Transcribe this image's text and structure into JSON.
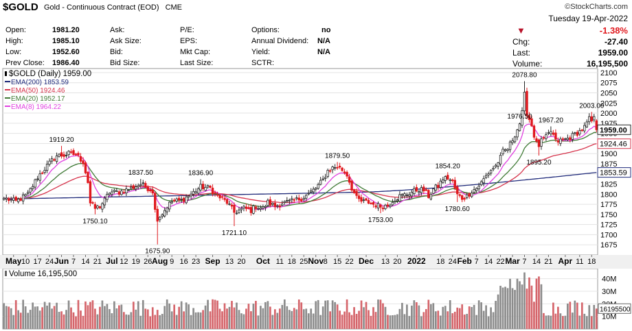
{
  "header": {
    "symbol": "$GOLD",
    "description": "Gold - Continuous Contract (EOD)",
    "exchange": "CME",
    "brand": "©StockCharts.com"
  },
  "quote": {
    "open_label": "Open:",
    "open_value": "1981.20",
    "high_label": "High:",
    "high_value": "1985.10",
    "low_label": "Low:",
    "low_value": "1952.60",
    "prevclose_label": "Prev Close:",
    "prevclose_value": "1986.40",
    "ask_label": "Ask:",
    "asksize_label": "Ask Size:",
    "bid_label": "Bid:",
    "bidsize_label": "Bid Size:",
    "pe_label": "P/E:",
    "eps_label": "EPS:",
    "mktcap_label": "Mkt Cap:",
    "lastsize_label": "Last Size:",
    "options_label": "Options:",
    "options_value": "no",
    "dividend_label": "Annual Dividend:",
    "dividend_value": "N/A",
    "yield_label": "Yield:",
    "yield_value": "N/A",
    "sctr_label": "SCTR:",
    "date": "Tuesday  19-Apr-2022",
    "pct_change": "-1.38%",
    "chg_label": "Chg:",
    "chg_value": "-27.40",
    "last_label": "Last:",
    "last_value": "1959.00",
    "volume_label": "Volume:",
    "volume_value": "16,195,500"
  },
  "colors": {
    "up": "#222222",
    "down": "#e0191e",
    "ema200": "#1f2a7a",
    "ema50": "#d6334b",
    "ema20": "#3f7a35",
    "ema8": "#e040e0",
    "vol_up": "#8c8c8c",
    "vol_down": "#d5656b"
  },
  "chart_data": {
    "type": "candlestick",
    "legend": [
      {
        "label": "$GOLD (Daily) 1959.00",
        "key": "price"
      },
      {
        "label": "EMA(200) 1853.59",
        "key": "ema200"
      },
      {
        "label": "EMA(50) 1924.46",
        "key": "ema50"
      },
      {
        "label": "EMA(20) 1952.17",
        "key": "ema20"
      },
      {
        "label": "EMA(8) 1964.22",
        "key": "ema8"
      }
    ],
    "ylim": [
      1650,
      2110
    ],
    "y_ticks": [
      1675,
      1700,
      1725,
      1750,
      1775,
      1800,
      1825,
      1850,
      1875,
      1900,
      1925,
      1950,
      1975,
      2000,
      2025,
      2050,
      2075,
      2100
    ],
    "x_labels": [
      {
        "label": "May",
        "bar": 4
      },
      {
        "label": "10",
        "bar": 9
      },
      {
        "label": "17",
        "bar": 14
      },
      {
        "label": "24",
        "bar": 19
      },
      {
        "label": "Jun",
        "bar": 24
      },
      {
        "label": "7",
        "bar": 29
      },
      {
        "label": "14",
        "bar": 34
      },
      {
        "label": "21",
        "bar": 39
      },
      {
        "label": "Jul",
        "bar": 45
      },
      {
        "label": "12",
        "bar": 50
      },
      {
        "label": "19",
        "bar": 55
      },
      {
        "label": "26",
        "bar": 60
      },
      {
        "label": "Aug",
        "bar": 65
      },
      {
        "label": "9",
        "bar": 70
      },
      {
        "label": "16",
        "bar": 75
      },
      {
        "label": "23",
        "bar": 80
      },
      {
        "label": "Sep",
        "bar": 87
      },
      {
        "label": "13",
        "bar": 94
      },
      {
        "label": "20",
        "bar": 99
      },
      {
        "label": "Oct",
        "bar": 108
      },
      {
        "label": "11",
        "bar": 115
      },
      {
        "label": "18",
        "bar": 120
      },
      {
        "label": "25",
        "bar": 125
      },
      {
        "label": "Nov",
        "bar": 130
      },
      {
        "label": "8",
        "bar": 134
      },
      {
        "label": "15",
        "bar": 139
      },
      {
        "label": "22",
        "bar": 144
      },
      {
        "label": "Dec",
        "bar": 151
      },
      {
        "label": "13",
        "bar": 159
      },
      {
        "label": "20",
        "bar": 164
      },
      {
        "label": "2022",
        "bar": 172
      },
      {
        "label": "18",
        "bar": 182
      },
      {
        "label": "24",
        "bar": 187
      },
      {
        "label": "Feb",
        "bar": 192
      },
      {
        "label": "7",
        "bar": 197
      },
      {
        "label": "14",
        "bar": 202
      },
      {
        "label": "22",
        "bar": 207
      },
      {
        "label": "Mar",
        "bar": 212
      },
      {
        "label": "7",
        "bar": 217
      },
      {
        "label": "14",
        "bar": 222
      },
      {
        "label": "21",
        "bar": 227
      },
      {
        "label": "Apr",
        "bar": 234
      },
      {
        "label": "11",
        "bar": 240
      },
      {
        "label": "18",
        "bar": 245
      }
    ],
    "anchors": [
      {
        "i": 0,
        "p": 1790
      },
      {
        "i": 5,
        "p": 1782
      },
      {
        "i": 10,
        "p": 1800
      },
      {
        "i": 14,
        "p": 1842
      },
      {
        "i": 18,
        "p": 1870
      },
      {
        "i": 22,
        "p": 1895
      },
      {
        "i": 25,
        "p": 1896
      },
      {
        "i": 27,
        "p": 1900
      },
      {
        "i": 30,
        "p": 1898
      },
      {
        "i": 33,
        "p": 1880
      },
      {
        "i": 35,
        "p": 1830
      },
      {
        "i": 36,
        "p": 1778
      },
      {
        "i": 38,
        "p": 1765
      },
      {
        "i": 40,
        "p": 1770
      },
      {
        "i": 42,
        "p": 1785
      },
      {
        "i": 44,
        "p": 1805
      },
      {
        "i": 48,
        "p": 1805
      },
      {
        "i": 52,
        "p": 1812
      },
      {
        "i": 57,
        "p": 1825
      },
      {
        "i": 60,
        "p": 1815
      },
      {
        "i": 62,
        "p": 1808
      },
      {
        "i": 63,
        "p": 1760
      },
      {
        "i": 64,
        "p": 1740
      },
      {
        "i": 66,
        "p": 1752
      },
      {
        "i": 68,
        "p": 1770
      },
      {
        "i": 70,
        "p": 1782
      },
      {
        "i": 74,
        "p": 1785
      },
      {
        "i": 78,
        "p": 1800
      },
      {
        "i": 82,
        "p": 1818
      },
      {
        "i": 86,
        "p": 1815
      },
      {
        "i": 88,
        "p": 1800
      },
      {
        "i": 90,
        "p": 1792
      },
      {
        "i": 93,
        "p": 1780
      },
      {
        "i": 96,
        "p": 1755
      },
      {
        "i": 98,
        "p": 1760
      },
      {
        "i": 100,
        "p": 1765
      },
      {
        "i": 103,
        "p": 1760
      },
      {
        "i": 105,
        "p": 1770
      },
      {
        "i": 108,
        "p": 1765
      },
      {
        "i": 110,
        "p": 1780
      },
      {
        "i": 113,
        "p": 1770
      },
      {
        "i": 116,
        "p": 1778
      },
      {
        "i": 120,
        "p": 1782
      },
      {
        "i": 124,
        "p": 1790
      },
      {
        "i": 127,
        "p": 1800
      },
      {
        "i": 130,
        "p": 1815
      },
      {
        "i": 133,
        "p": 1835
      },
      {
        "i": 135,
        "p": 1858
      },
      {
        "i": 137,
        "p": 1865
      },
      {
        "i": 139,
        "p": 1868
      },
      {
        "i": 141,
        "p": 1860
      },
      {
        "i": 143,
        "p": 1848
      },
      {
        "i": 145,
        "p": 1815
      },
      {
        "i": 147,
        "p": 1790
      },
      {
        "i": 149,
        "p": 1782
      },
      {
        "i": 152,
        "p": 1780
      },
      {
        "i": 154,
        "p": 1775
      },
      {
        "i": 157,
        "p": 1770
      },
      {
        "i": 160,
        "p": 1772
      },
      {
        "i": 162,
        "p": 1785
      },
      {
        "i": 165,
        "p": 1795
      },
      {
        "i": 168,
        "p": 1800
      },
      {
        "i": 171,
        "p": 1808
      },
      {
        "i": 173,
        "p": 1812
      },
      {
        "i": 175,
        "p": 1810
      },
      {
        "i": 177,
        "p": 1795
      },
      {
        "i": 179,
        "p": 1812
      },
      {
        "i": 181,
        "p": 1820
      },
      {
        "i": 183,
        "p": 1838
      },
      {
        "i": 185,
        "p": 1840
      },
      {
        "i": 187,
        "p": 1830
      },
      {
        "i": 189,
        "p": 1798
      },
      {
        "i": 191,
        "p": 1790
      },
      {
        "i": 193,
        "p": 1795
      },
      {
        "i": 195,
        "p": 1808
      },
      {
        "i": 197,
        "p": 1815
      },
      {
        "i": 199,
        "p": 1828
      },
      {
        "i": 201,
        "p": 1845
      },
      {
        "i": 203,
        "p": 1860
      },
      {
        "i": 205,
        "p": 1870
      },
      {
        "i": 207,
        "p": 1890
      },
      {
        "i": 208,
        "p": 1905
      },
      {
        "i": 210,
        "p": 1912
      },
      {
        "i": 212,
        "p": 1935
      },
      {
        "i": 214,
        "p": 1960
      },
      {
        "i": 215,
        "p": 1975
      },
      {
        "i": 216,
        "p": 2000
      },
      {
        "i": 217,
        "p": 2045
      },
      {
        "i": 218,
        "p": 2000
      },
      {
        "i": 219,
        "p": 1985
      },
      {
        "i": 220,
        "p": 1970
      },
      {
        "i": 221,
        "p": 1945
      },
      {
        "i": 222,
        "p": 1925
      },
      {
        "i": 223,
        "p": 1920
      },
      {
        "i": 224,
        "p": 1930
      },
      {
        "i": 226,
        "p": 1940
      },
      {
        "i": 228,
        "p": 1955
      },
      {
        "i": 229,
        "p": 1945
      },
      {
        "i": 230,
        "p": 1930
      },
      {
        "i": 232,
        "p": 1932
      },
      {
        "i": 234,
        "p": 1935
      },
      {
        "i": 236,
        "p": 1940
      },
      {
        "i": 238,
        "p": 1948
      },
      {
        "i": 240,
        "p": 1955
      },
      {
        "i": 242,
        "p": 1965
      },
      {
        "i": 243,
        "p": 1975
      },
      {
        "i": 244,
        "p": 1985
      },
      {
        "i": 245,
        "p": 1980
      },
      {
        "i": 246,
        "p": 1986
      },
      {
        "i": 247,
        "p": 1959
      }
    ],
    "extremes": [
      {
        "i": 24,
        "p": 1919.2,
        "type": "high",
        "label": "1919.20"
      },
      {
        "i": 38,
        "p": 1750.1,
        "type": "low",
        "label": "1750.10"
      },
      {
        "i": 57,
        "p": 1837.5,
        "type": "high",
        "label": "1837.50"
      },
      {
        "i": 64,
        "p": 1675.9,
        "type": "low",
        "label": "1675.90"
      },
      {
        "i": 82,
        "p": 1836.9,
        "type": "high",
        "label": "1836.90"
      },
      {
        "i": 96,
        "p": 1721.1,
        "type": "low",
        "label": "1721.10"
      },
      {
        "i": 139,
        "p": 1879.5,
        "type": "high",
        "label": "1879.50"
      },
      {
        "i": 157,
        "p": 1753.0,
        "type": "low",
        "label": "1753.00"
      },
      {
        "i": 185,
        "p": 1854.2,
        "type": "high",
        "label": "1854.20"
      },
      {
        "i": 189,
        "p": 1780.6,
        "type": "low",
        "label": "1780.60"
      },
      {
        "i": 215,
        "p": 1976.5,
        "type": "high",
        "label": "1976.50"
      },
      {
        "i": 217,
        "p": 2078.8,
        "type": "high",
        "label": "2078.80"
      },
      {
        "i": 223,
        "p": 1895.2,
        "type": "low",
        "label": "1895.20"
      },
      {
        "i": 228,
        "p": 1967.2,
        "type": "high",
        "label": "1967.20"
      },
      {
        "i": 245,
        "p": 2003.0,
        "type": "high",
        "label": "2003.00"
      }
    ],
    "last_close": 1959.0,
    "ema_end": {
      "ema200": 1853.59,
      "ema50": 1924.46,
      "ema20": 1952.17,
      "ema8": 1964.22
    },
    "volume": {
      "label": "Volume 16,195,500",
      "ylim": [
        0,
        48
      ],
      "ticks": [
        {
          "value": 10,
          "label": "10M"
        },
        {
          "value": 20,
          "label": "20M"
        },
        {
          "value": 30,
          "label": "30M"
        },
        {
          "value": 40,
          "label": "40M"
        }
      ],
      "last_label": "16195500",
      "last_value": 16.2
    }
  }
}
